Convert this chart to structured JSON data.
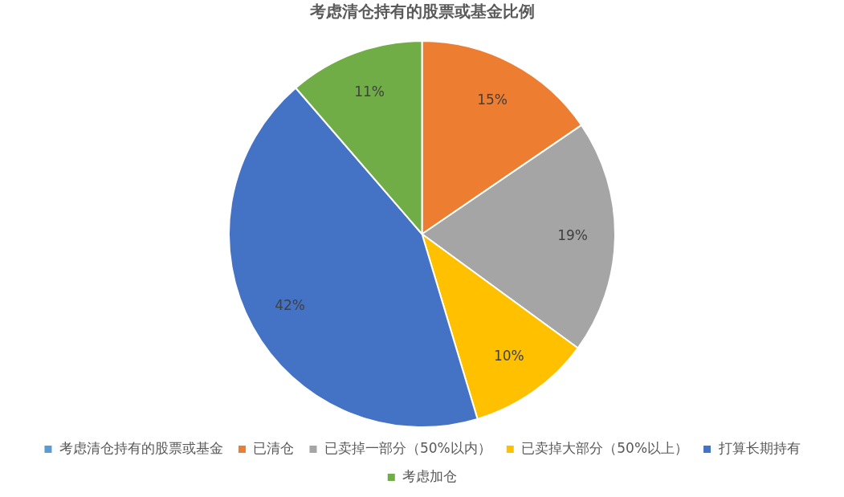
{
  "chart_data": {
    "type": "pie",
    "title": "考虑清仓持有的股票或基金比例",
    "categories": [
      "考虑清仓持有的股票或基金",
      "已清仓",
      "已卖掉一部分（50%以内）",
      "已卖掉大部分（50%以上）",
      "打算长期持有",
      "考虑加仓"
    ],
    "values": [
      0,
      15,
      19,
      10,
      42,
      11
    ],
    "colors": [
      "#5b9bd5",
      "#ed7d31",
      "#a5a5a5",
      "#ffc000",
      "#4472c4",
      "#70ad47"
    ],
    "value_labels": [
      null,
      "15%",
      "19%",
      "10%",
      "42%",
      "11%"
    ],
    "legend": "bottom"
  }
}
